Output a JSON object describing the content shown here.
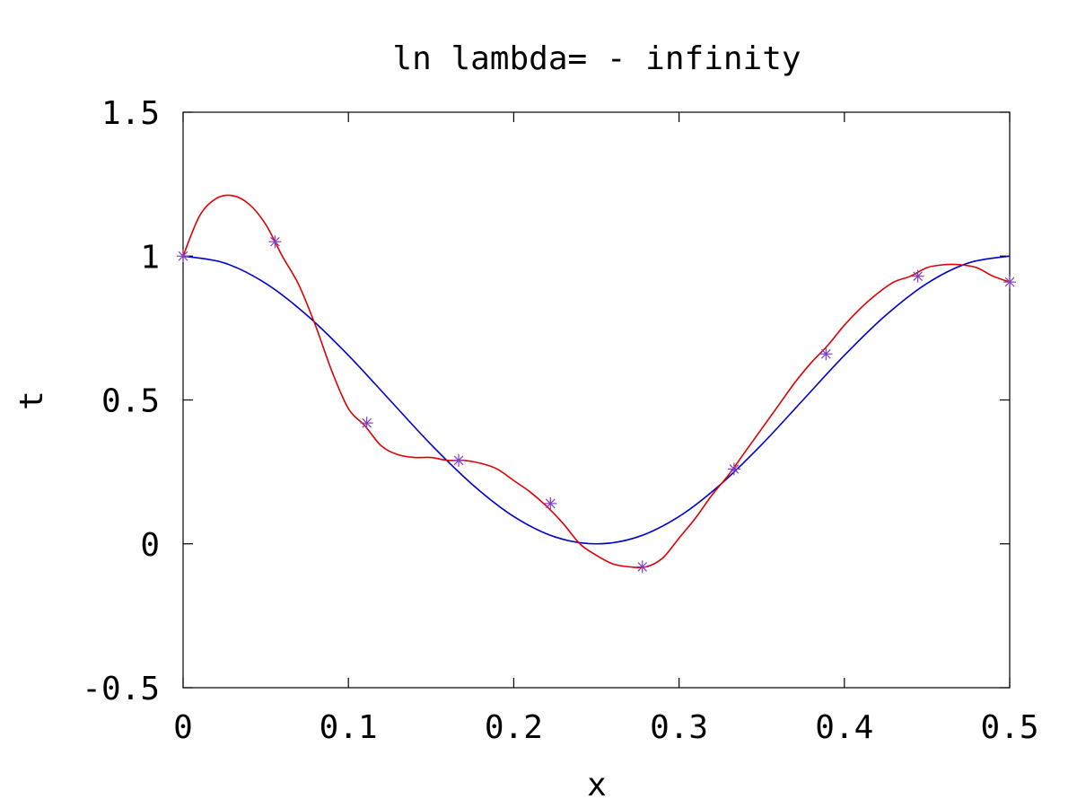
{
  "chart_data": {
    "type": "line",
    "title": "ln lambda= - infinity",
    "xlabel": "x",
    "ylabel": "t",
    "xlim": [
      0,
      0.5
    ],
    "ylim": [
      -0.5,
      1.5
    ],
    "xticks": [
      0,
      0.1,
      0.2,
      0.3,
      0.4,
      0.5
    ],
    "xtick_labels": [
      "0",
      "0.1",
      "0.2",
      "0.3",
      "0.4",
      "0.5"
    ],
    "yticks": [
      -0.5,
      0,
      0.5,
      1,
      1.5
    ],
    "ytick_labels": [
      "-0.5",
      "0",
      "0.5",
      "1",
      "1.5"
    ],
    "grid": false,
    "legend": "none",
    "series": [
      {
        "kind": "scatter",
        "marker": "asterisk",
        "color": "#7f3fbf",
        "x": [
          0,
          0.0556,
          0.1111,
          0.1667,
          0.2222,
          0.2778,
          0.3333,
          0.3889,
          0.4444,
          0.5
        ],
        "y": [
          1.0,
          1.05,
          0.42,
          0.29,
          0.14,
          -0.08,
          0.26,
          0.66,
          0.93,
          0.91
        ]
      },
      {
        "kind": "line",
        "color": "#0000cc",
        "x": [
          0,
          0.025,
          0.05,
          0.075,
          0.1,
          0.125,
          0.15,
          0.175,
          0.2,
          0.225,
          0.25,
          0.275,
          0.3,
          0.325,
          0.35,
          0.375,
          0.4,
          0.425,
          0.45,
          0.475,
          0.5
        ],
        "y": [
          1.0,
          0.976,
          0.905,
          0.794,
          0.655,
          0.5,
          0.345,
          0.206,
          0.095,
          0.024,
          0.0,
          0.024,
          0.095,
          0.206,
          0.345,
          0.5,
          0.655,
          0.794,
          0.905,
          0.976,
          1.0
        ]
      },
      {
        "kind": "line",
        "color": "#dd0000",
        "x": [
          0,
          0.01,
          0.02,
          0.03,
          0.04,
          0.05,
          0.06,
          0.07,
          0.08,
          0.09,
          0.1,
          0.11,
          0.12,
          0.13,
          0.14,
          0.15,
          0.16,
          0.17,
          0.18,
          0.19,
          0.2,
          0.21,
          0.22,
          0.23,
          0.24,
          0.25,
          0.26,
          0.27,
          0.28,
          0.29,
          0.3,
          0.31,
          0.32,
          0.33,
          0.34,
          0.35,
          0.36,
          0.37,
          0.38,
          0.39,
          0.4,
          0.41,
          0.42,
          0.43,
          0.44,
          0.45,
          0.46,
          0.47,
          0.48,
          0.49,
          0.5
        ],
        "y": [
          1.0,
          1.14,
          1.2,
          1.21,
          1.18,
          1.11,
          1.0,
          0.9,
          0.76,
          0.6,
          0.47,
          0.41,
          0.34,
          0.31,
          0.3,
          0.3,
          0.29,
          0.29,
          0.28,
          0.26,
          0.22,
          0.18,
          0.13,
          0.07,
          0.0,
          -0.04,
          -0.07,
          -0.08,
          -0.08,
          -0.05,
          0.02,
          0.09,
          0.17,
          0.24,
          0.32,
          0.4,
          0.48,
          0.56,
          0.63,
          0.69,
          0.76,
          0.82,
          0.87,
          0.91,
          0.93,
          0.96,
          0.97,
          0.97,
          0.96,
          0.93,
          0.91
        ]
      }
    ]
  }
}
